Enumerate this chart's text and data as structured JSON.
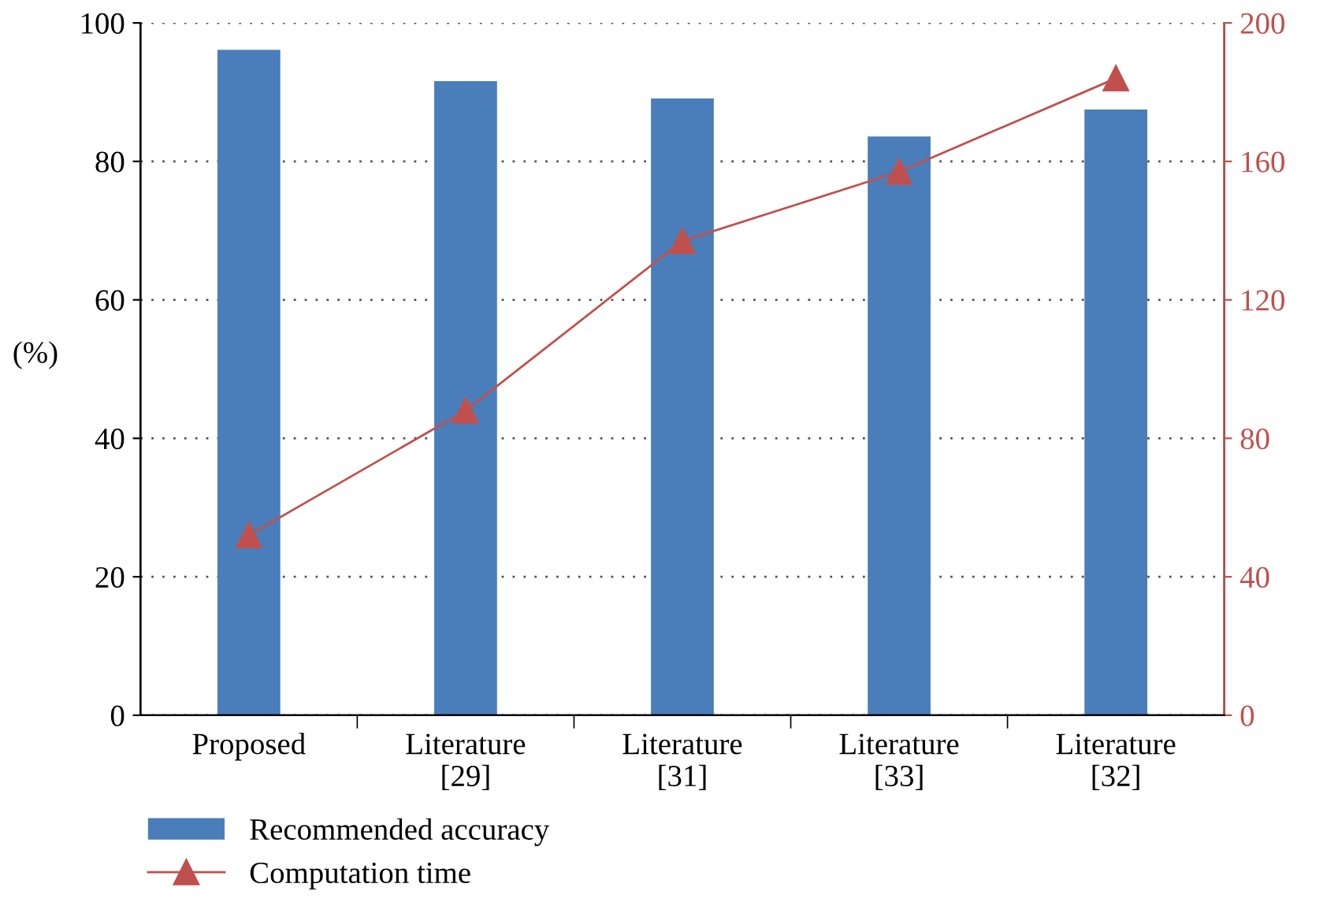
{
  "chart_data": {
    "type": "bar",
    "categories": [
      "Proposed",
      "Literature\n[29]",
      "Literature\n[31]",
      "Literature\n[33]",
      "Literature\n[32]"
    ],
    "ylabel": "(%)",
    "ylim": [
      0,
      100
    ],
    "yticks": [
      0,
      20,
      40,
      60,
      80,
      100
    ],
    "y2lim": [
      0,
      200
    ],
    "y2ticks": [
      0,
      40,
      80,
      120,
      160,
      200
    ],
    "grid": "y",
    "legend": "bottom left",
    "series": [
      {
        "name": "Recommended accuracy",
        "color": "#4a7ebb",
        "values": [
          96.1,
          91.6,
          89.1,
          83.6,
          87.5
        ]
      },
      {
        "name": "Computation time",
        "type": "line",
        "axis": "y2",
        "color": "#c0504d",
        "marker": "triangle",
        "values": [
          52,
          88,
          137,
          157,
          184
        ]
      }
    ]
  }
}
